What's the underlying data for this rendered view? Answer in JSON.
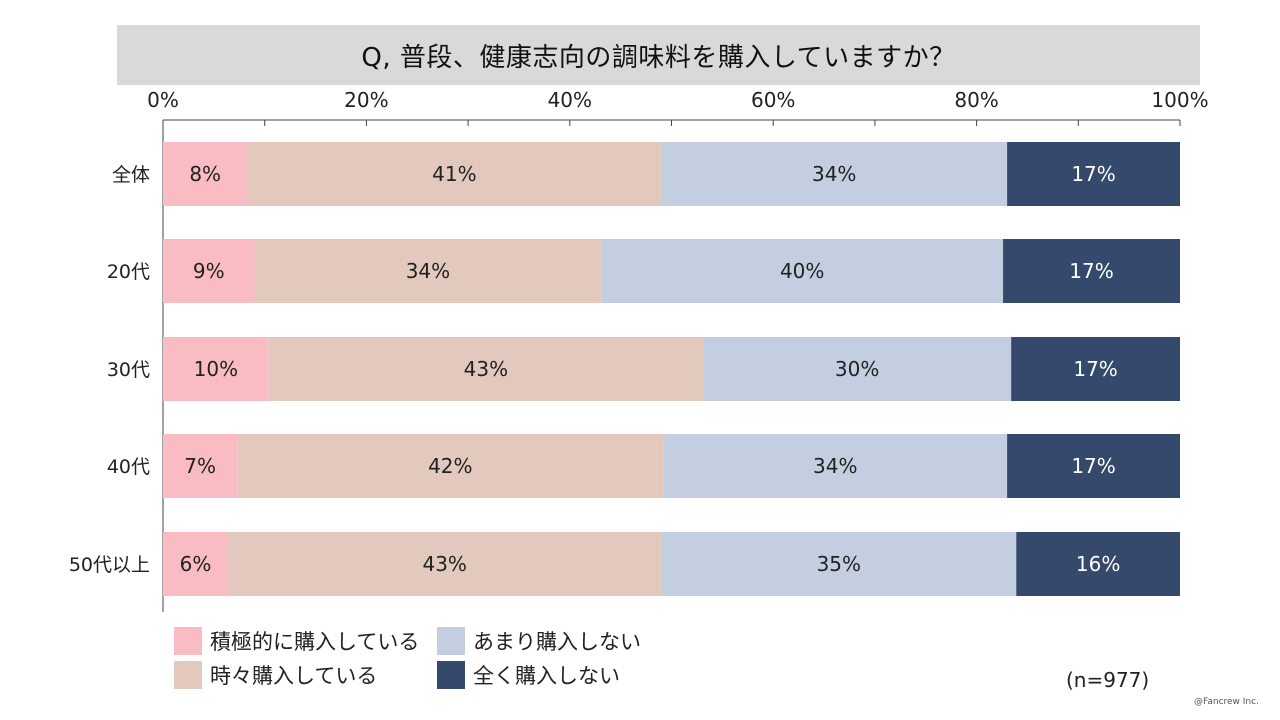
{
  "title": "Q, 普段、健康志向の調味料を購入していますか？",
  "sample_size": "(n=977)",
  "copyright": "@Fancrew Inc.",
  "legend": [
    {
      "label": "積極的に購入している",
      "color": "#f9bcc2"
    },
    {
      "label": "あまり購入しない",
      "color": "#c3cfe0"
    },
    {
      "label": "時々購入している",
      "color": "#e3c9bd"
    },
    {
      "label": "全く購入しない",
      "color": "#34496b"
    }
  ],
  "chart_data": {
    "type": "bar",
    "orientation": "horizontal",
    "stacked": true,
    "title": "Q, 普段、健康志向の調味料を購入していますか？",
    "xlim": [
      0,
      100
    ],
    "x_ticks": [
      "0%",
      "20%",
      "40%",
      "60%",
      "80%",
      "100%"
    ],
    "categories": [
      "全体",
      "20代",
      "30代",
      "40代",
      "50代以上"
    ],
    "series": [
      {
        "name": "積極的に購入している",
        "color": "#f9bcc2",
        "label_color": "#222222",
        "values": [
          8.3,
          9.0,
          10.4,
          7.3,
          6.4
        ],
        "labels": [
          "8%",
          "9%",
          "10%",
          "7%",
          "6%"
        ]
      },
      {
        "name": "時々購入している",
        "color": "#e3c9bd",
        "label_color": "#222222",
        "values": [
          40.7,
          34.1,
          42.7,
          41.9,
          42.6
        ],
        "labels": [
          "41%",
          "34%",
          "43%",
          "42%",
          "43%"
        ]
      },
      {
        "name": "あまり購入しない",
        "color": "#c3cfe0",
        "label_color": "#222222",
        "values": [
          34.0,
          39.5,
          30.3,
          33.8,
          34.9
        ],
        "labels": [
          "34%",
          "40%",
          "30%",
          "34%",
          "35%"
        ]
      },
      {
        "name": "全く購入しない",
        "color": "#34496b",
        "label_color": "#ffffff",
        "values": [
          17.0,
          17.4,
          16.6,
          17.0,
          16.1
        ],
        "labels": [
          "17%",
          "17%",
          "17%",
          "17%",
          "16%"
        ]
      }
    ],
    "legend_position": "bottom-left",
    "grid": false
  }
}
